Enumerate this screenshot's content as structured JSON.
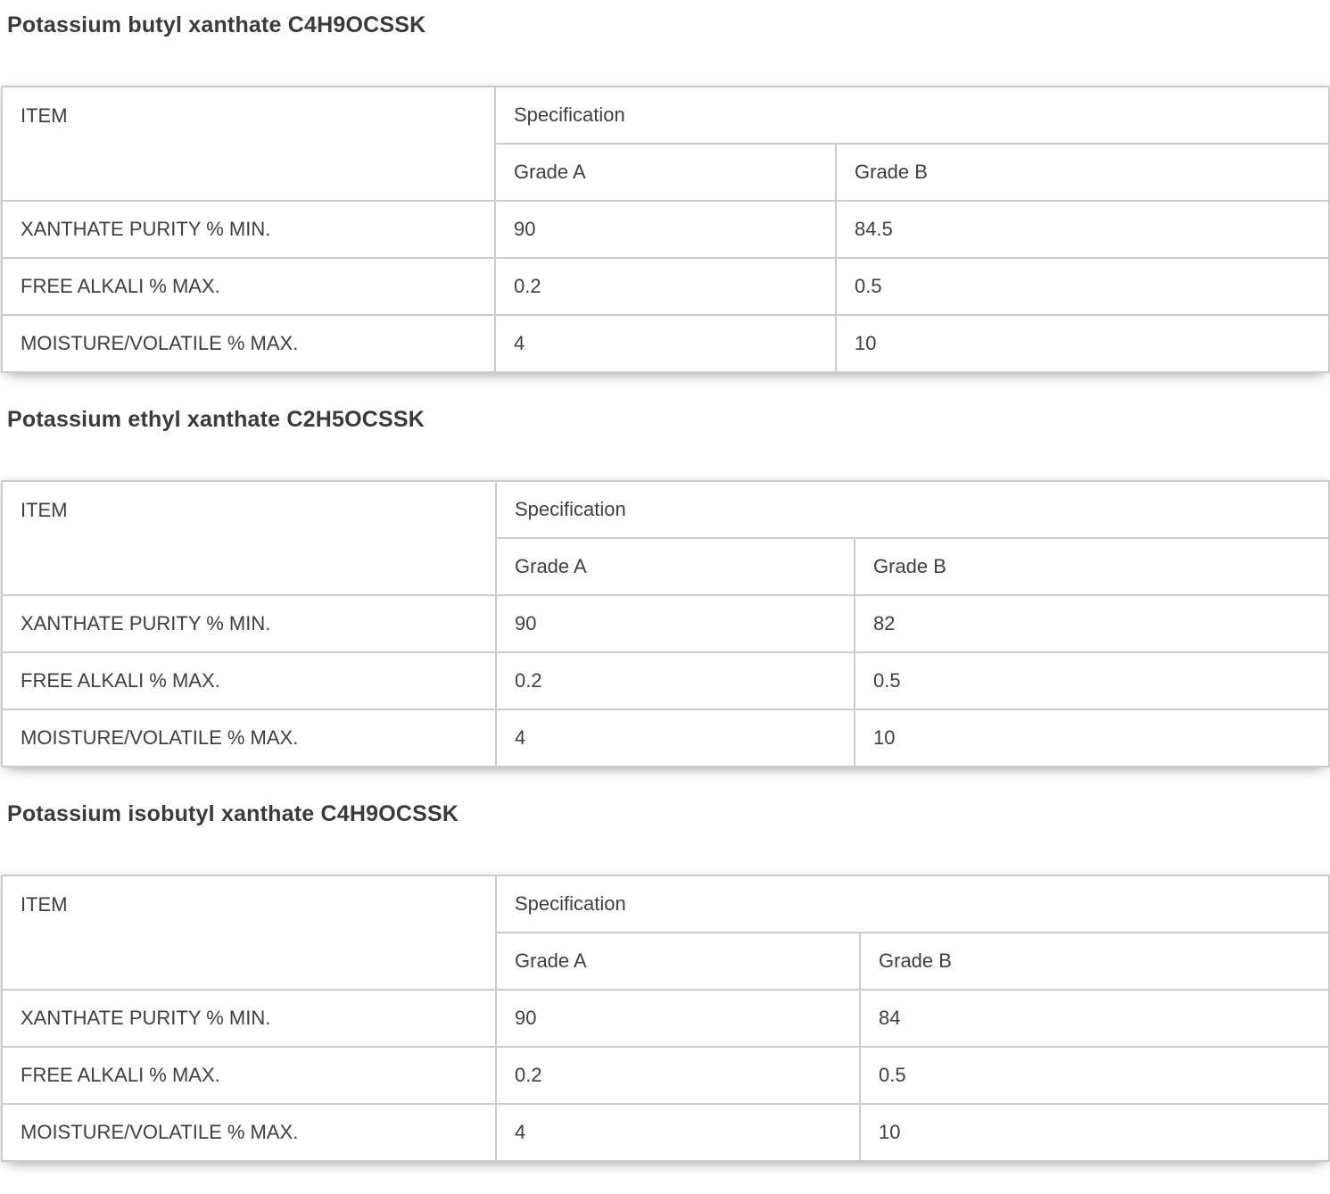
{
  "colors": {
    "heading_text": "#3a3a3a",
    "table_text": "#3f3f3f",
    "table_border": "#cccccc",
    "background": "#ffffff"
  },
  "sections": [
    {
      "title": "Potassium butyl xanthate C4H9OCSSK",
      "table": {
        "headers": {
          "item": "ITEM",
          "specification": "Specification",
          "grade_a": "Grade A",
          "grade_b": "Grade B"
        },
        "rows": [
          {
            "item": "XANTHATE PURITY % MIN.",
            "grade_a": "90",
            "grade_b": "84.5"
          },
          {
            "item": "FREE ALKALI % MAX.",
            "grade_a": "0.2",
            "grade_b": "0.5"
          },
          {
            "item": "MOISTURE/VOLATILE % MAX.",
            "grade_a": "4",
            "grade_b": "10"
          }
        ]
      }
    },
    {
      "title": "Potassium ethyl xanthate C2H5OCSSK",
      "table": {
        "headers": {
          "item": "ITEM",
          "specification": "Specification",
          "grade_a": "Grade A",
          "grade_b": "Grade B"
        },
        "rows": [
          {
            "item": "XANTHATE PURITY % MIN.",
            "grade_a": "90",
            "grade_b": "82"
          },
          {
            "item": "FREE ALKALI % MAX.",
            "grade_a": "0.2",
            "grade_b": "0.5"
          },
          {
            "item": "MOISTURE/VOLATILE % MAX.",
            "grade_a": "4",
            "grade_b": "10"
          }
        ]
      }
    },
    {
      "title": "Potassium isobutyl xanthate C4H9OCSSK",
      "table": {
        "headers": {
          "item": "ITEM",
          "specification": "Specification",
          "grade_a": "Grade A",
          "grade_b": "Grade B"
        },
        "rows": [
          {
            "item": "XANTHATE PURITY % MIN.",
            "grade_a": "90",
            "grade_b": "84"
          },
          {
            "item": "FREE ALKALI % MAX.",
            "grade_a": "0.2",
            "grade_b": "0.5"
          },
          {
            "item": "MOISTURE/VOLATILE % MAX.",
            "grade_a": "4",
            "grade_b": "10"
          }
        ]
      }
    }
  ]
}
